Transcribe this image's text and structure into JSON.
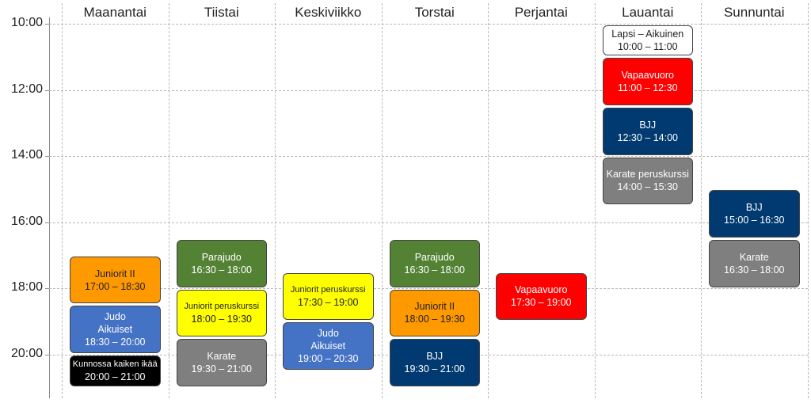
{
  "days": [
    "Maanantai",
    "Tiistai",
    "Keskiviikko",
    "Torstai",
    "Perjantai",
    "Lauantai",
    "Sunnuntai"
  ],
  "time_labels": [
    "10:00",
    "12:00",
    "14:00",
    "16:00",
    "18:00",
    "20:00"
  ],
  "colors": {
    "green": "#548235",
    "yellow": "#ffff00",
    "gray": "#7f7f7f",
    "orange": "#ff9900",
    "blue": "#4472c4",
    "navy": "#003a70",
    "black": "#000000",
    "red": "#ff0000",
    "white": "#ffffff"
  },
  "events": [
    {
      "day": 0,
      "start": "17:00",
      "end": "18:30",
      "lines": [
        "Juniorit II",
        "17:00 – 18:30"
      ],
      "color": "#ff9900",
      "text_color": "#222222"
    },
    {
      "day": 0,
      "start": "18:30",
      "end": "20:00",
      "lines": [
        "Judo",
        "Aikuiset",
        "18:30 – 20:00"
      ],
      "color": "#4472c4",
      "text_color": "#ffffff"
    },
    {
      "day": 0,
      "start": "20:00",
      "end": "21:00",
      "lines": [
        "Kunnossa kaiken ikää",
        "20:00 – 21:00"
      ],
      "color": "#000000",
      "text_color": "#ffffff"
    },
    {
      "day": 1,
      "start": "16:30",
      "end": "18:00",
      "lines": [
        "Parajudo",
        "16:30 – 18:00"
      ],
      "color": "#548235",
      "text_color": "#ffffff"
    },
    {
      "day": 1,
      "start": "18:00",
      "end": "19:30",
      "lines": [
        "Juniorit peruskurssi",
        "18:00 – 19:30"
      ],
      "color": "#ffff00",
      "text_color": "#222222"
    },
    {
      "day": 1,
      "start": "19:30",
      "end": "21:00",
      "lines": [
        "Karate",
        "19:30 – 21:00"
      ],
      "color": "#7f7f7f",
      "text_color": "#ffffff"
    },
    {
      "day": 2,
      "start": "17:30",
      "end": "19:00",
      "lines": [
        "Juniorit peruskurssi",
        "17:30 – 19:00"
      ],
      "color": "#ffff00",
      "text_color": "#222222"
    },
    {
      "day": 2,
      "start": "19:00",
      "end": "20:30",
      "lines": [
        "Judo",
        "Aikuiset",
        "19:00 – 20:30"
      ],
      "color": "#4472c4",
      "text_color": "#ffffff"
    },
    {
      "day": 3,
      "start": "16:30",
      "end": "18:00",
      "lines": [
        "Parajudo",
        "16:30 – 18:00"
      ],
      "color": "#548235",
      "text_color": "#ffffff"
    },
    {
      "day": 3,
      "start": "18:00",
      "end": "19:30",
      "lines": [
        "Juniorit II",
        "18:00 – 19:30"
      ],
      "color": "#ff9900",
      "text_color": "#222222"
    },
    {
      "day": 3,
      "start": "19:30",
      "end": "21:00",
      "lines": [
        "BJJ",
        "19:30 – 21:00"
      ],
      "color": "#003a70",
      "text_color": "#ffffff"
    },
    {
      "day": 4,
      "start": "17:30",
      "end": "19:00",
      "lines": [
        "Vapaavuoro",
        "17:30 – 19:00"
      ],
      "color": "#ff0000",
      "text_color": "#ffffff"
    },
    {
      "day": 5,
      "start": "10:00",
      "end": "11:00",
      "lines": [
        "Lapsi – Aikuinen",
        "10:00 – 11:00"
      ],
      "color": "#ffffff",
      "text_color": "#222222"
    },
    {
      "day": 5,
      "start": "11:00",
      "end": "12:30",
      "lines": [
        "Vapaavuoro",
        "11:00 – 12:30"
      ],
      "color": "#ff0000",
      "text_color": "#ffffff"
    },
    {
      "day": 5,
      "start": "12:30",
      "end": "14:00",
      "lines": [
        "BJJ",
        "12:30 – 14:00"
      ],
      "color": "#003a70",
      "text_color": "#ffffff"
    },
    {
      "day": 5,
      "start": "14:00",
      "end": "15:30",
      "lines": [
        "Karate peruskurssi",
        "14:00 – 15:30"
      ],
      "color": "#7f7f7f",
      "text_color": "#ffffff"
    },
    {
      "day": 6,
      "start": "15:00",
      "end": "16:30",
      "lines": [
        "BJJ",
        "15:00 – 16:30"
      ],
      "color": "#003a70",
      "text_color": "#ffffff"
    },
    {
      "day": 6,
      "start": "16:30",
      "end": "18:00",
      "lines": [
        "Karate",
        "16:30 – 18:00"
      ],
      "color": "#7f7f7f",
      "text_color": "#ffffff"
    }
  ]
}
